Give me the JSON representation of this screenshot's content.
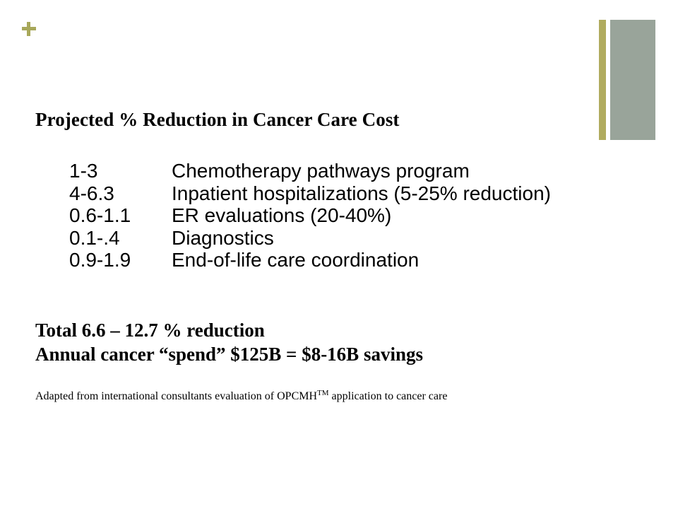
{
  "decor": {
    "plus_icon_color": "#a8a85a",
    "bar_thin_color": "#b0ab5f",
    "bar_wide_color": "#99a49a"
  },
  "heading": "Projected % Reduction in Cancer Care Cost",
  "items": [
    {
      "range": "1-3",
      "label": "Chemotherapy pathways program"
    },
    {
      "range": "4-6.3",
      "label": "Inpatient hospitalizations (5-25% reduction)"
    },
    {
      "range": "0.6-1.1",
      "label": "ER evaluations (20-40%)"
    },
    {
      "range": "0.1-.4",
      "label": "Diagnostics"
    },
    {
      "range": "0.9-1.9",
      "label": "End-of-life care coordination"
    }
  ],
  "total": {
    "line1": "Total 6.6 – 12.7 % reduction",
    "line2": "Annual cancer “spend” $125B = $8-16B savings"
  },
  "footnote": {
    "before": "Adapted from international consultants evaluation of OPCMH",
    "superscript": "TM",
    "after": " application to cancer care"
  }
}
